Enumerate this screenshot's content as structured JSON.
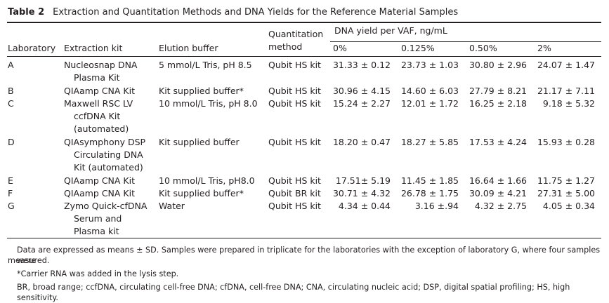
{
  "table": {
    "number": "Table 2",
    "caption": "Extraction and Quantitation Methods and DNA Yields for the Reference Material Samples",
    "headers": {
      "laboratory": "Laboratory",
      "extraction_kit": "Extraction kit",
      "elution_buffer": "Elution buffer",
      "quantitation_method_line1": "Quantitation",
      "quantitation_method_line2": "method",
      "dna_yield_group": "DNA yield per VAF, ng/mL",
      "vaf": [
        "0%",
        "0.125%",
        "0.50%",
        "2%"
      ]
    },
    "rows": [
      {
        "lab": "A",
        "kit": [
          "Nucleosnap DNA",
          "Plasma Kit"
        ],
        "buffer": "5 mmol/L Tris, pH 8.5",
        "method": "Qubit HS kit",
        "yields": [
          "31.33 ± 0.12",
          "23.73 ± 1.03",
          "30.80 ± 2.96",
          "24.07 ± 1.47"
        ]
      },
      {
        "lab": "B",
        "kit": [
          "QIAamp CNA Kit"
        ],
        "buffer": "Kit supplied buffer*",
        "method": "Qubit HS kit",
        "yields": [
          "30.96 ± 4.15",
          "14.60 ± 6.03",
          "27.79 ± 8.21",
          "21.17 ± 7.11"
        ]
      },
      {
        "lab": "C",
        "kit": [
          "Maxwell RSC LV",
          "ccfDNA Kit",
          "(automated)"
        ],
        "buffer": "10 mmol/L Tris, pH 8.0",
        "method": "Qubit HS kit",
        "yields": [
          "15.24 ± 2.27",
          "12.01 ± 1.72",
          "16.25 ± 2.18",
          "9.18 ± 5.32"
        ]
      },
      {
        "lab": "D",
        "kit": [
          "QIAsymphony DSP",
          "Circulating DNA",
          "Kit (automated)"
        ],
        "buffer": "Kit supplied buffer",
        "method": "Qubit HS kit",
        "yields": [
          "18.20 ± 0.47",
          "18.27 ± 5.85",
          "17.53 ± 4.24",
          "15.93 ± 0.28"
        ]
      },
      {
        "lab": "E",
        "kit": [
          "QIAamp CNA Kit"
        ],
        "buffer": "10 mmol/L Tris, pH8.0",
        "method": "Qubit HS kit",
        "yields": [
          "17.51± 5.19",
          "11.45 ± 1.85",
          "16.64 ± 1.66",
          "11.75 ± 1.27"
        ]
      },
      {
        "lab": "F",
        "kit": [
          "QIAamp CNA Kit"
        ],
        "buffer": "Kit supplied buffer*",
        "method": "Qubit BR kit",
        "yields": [
          "30.71 ± 4.32",
          "26.78 ± 1.75",
          "30.09 ± 4.21",
          "27.31 ± 5.00"
        ]
      },
      {
        "lab": "G",
        "kit": [
          "Zymo Quick-cfDNA",
          "Serum and",
          "Plasma kit"
        ],
        "buffer": "Water",
        "method": "Qubit HS kit",
        "yields": [
          "4.34 ± 0.44",
          "3.16 ±.94",
          "4.32 ± 2.75",
          "4.05 ± 0.34"
        ]
      }
    ],
    "footnotes": [
      "Data are expressed as means ± SD. Samples were prepared in triplicate for the laboratories with the exception of laboratory G, where four samples were",
      "measured.",
      "*Carrier RNA was added in the lysis step.",
      "BR, broad range; ccfDNA, circulating cell-free DNA; cfDNA, cell-free DNA; CNA, circulating nucleic acid; DSP, digital spatial profiling; HS, high sensitivity."
    ]
  }
}
